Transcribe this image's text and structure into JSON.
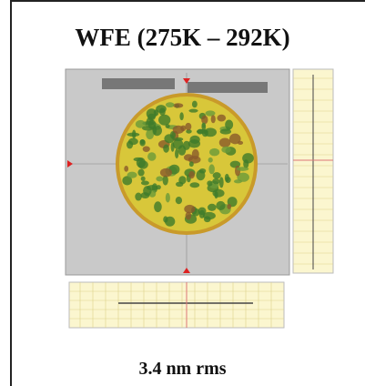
{
  "header": {
    "title": "WFE (275K – 292K)"
  },
  "caption": "3.4 nm rms"
}
